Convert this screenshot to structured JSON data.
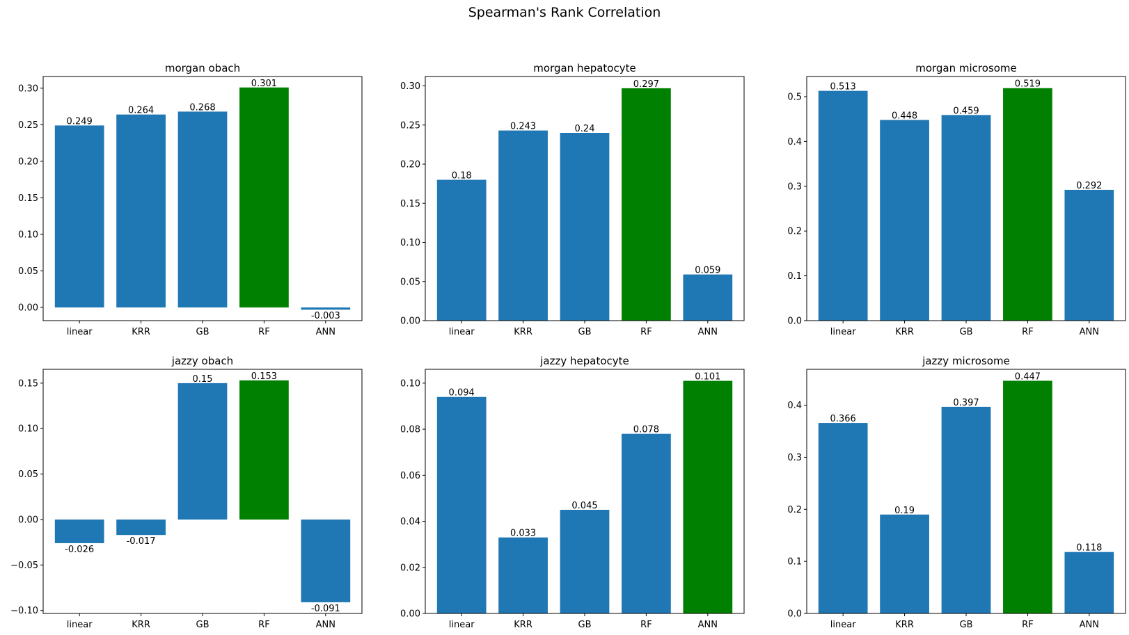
{
  "title": "Spearman's Rank Correlation",
  "colors": {
    "default": "#1f77b4",
    "best": "#008000"
  },
  "chart_data": [
    {
      "type": "bar",
      "title": "morgan obach",
      "categories": [
        "linear",
        "KRR",
        "GB",
        "RF",
        "ANN"
      ],
      "values": [
        0.249,
        0.264,
        0.268,
        0.301,
        -0.003
      ],
      "value_labels": [
        "0.249",
        "0.264",
        "0.268",
        "0.301",
        "-0.003"
      ],
      "ylim": [
        -0.018,
        0.316
      ],
      "yticks": [
        0.0,
        0.05,
        0.1,
        0.15,
        0.2,
        0.25,
        0.3
      ],
      "ytick_labels": [
        "0.00",
        "0.05",
        "0.10",
        "0.15",
        "0.20",
        "0.25",
        "0.30"
      ],
      "highlight_index": 3
    },
    {
      "type": "bar",
      "title": "morgan hepatocyte",
      "categories": [
        "linear",
        "KRR",
        "GB",
        "RF",
        "ANN"
      ],
      "values": [
        0.18,
        0.243,
        0.24,
        0.297,
        0.059
      ],
      "value_labels": [
        "0.18",
        "0.243",
        "0.24",
        "0.297",
        "0.059"
      ],
      "ylim": [
        0,
        0.312
      ],
      "yticks": [
        0.0,
        0.05,
        0.1,
        0.15,
        0.2,
        0.25,
        0.3
      ],
      "ytick_labels": [
        "0.00",
        "0.05",
        "0.10",
        "0.15",
        "0.20",
        "0.25",
        "0.30"
      ],
      "highlight_index": 3
    },
    {
      "type": "bar",
      "title": "morgan microsome",
      "categories": [
        "linear",
        "KRR",
        "GB",
        "RF",
        "ANN"
      ],
      "values": [
        0.513,
        0.448,
        0.459,
        0.519,
        0.292
      ],
      "value_labels": [
        "0.513",
        "0.448",
        "0.459",
        "0.519",
        "0.292"
      ],
      "ylim": [
        0,
        0.545
      ],
      "yticks": [
        0.0,
        0.1,
        0.2,
        0.3,
        0.4,
        0.5
      ],
      "ytick_labels": [
        "0.0",
        "0.1",
        "0.2",
        "0.3",
        "0.4",
        "0.5"
      ],
      "highlight_index": 3
    },
    {
      "type": "bar",
      "title": "jazzy obach",
      "categories": [
        "linear",
        "KRR",
        "GB",
        "RF",
        "ANN"
      ],
      "values": [
        -0.026,
        -0.017,
        0.15,
        0.153,
        -0.091
      ],
      "value_labels": [
        "-0.026",
        "-0.017",
        "0.15",
        "0.153",
        "-0.091"
      ],
      "ylim": [
        -0.1033,
        0.1652
      ],
      "yticks": [
        -0.1,
        -0.05,
        0.0,
        0.05,
        0.1,
        0.15
      ],
      "ytick_labels": [
        "−0.10",
        "−0.05",
        "0.00",
        "0.05",
        "0.10",
        "0.15"
      ],
      "highlight_index": 3
    },
    {
      "type": "bar",
      "title": "jazzy hepatocyte",
      "categories": [
        "linear",
        "KRR",
        "GB",
        "RF",
        "ANN"
      ],
      "values": [
        0.094,
        0.033,
        0.045,
        0.078,
        0.101
      ],
      "value_labels": [
        "0.094",
        "0.033",
        "0.045",
        "0.078",
        "0.101"
      ],
      "ylim": [
        0,
        0.106
      ],
      "yticks": [
        0.0,
        0.02,
        0.04,
        0.06,
        0.08,
        0.1
      ],
      "ytick_labels": [
        "0.00",
        "0.02",
        "0.04",
        "0.06",
        "0.08",
        "0.10"
      ],
      "highlight_index": 4
    },
    {
      "type": "bar",
      "title": "jazzy microsome",
      "categories": [
        "linear",
        "KRR",
        "GB",
        "RF",
        "ANN"
      ],
      "values": [
        0.366,
        0.19,
        0.397,
        0.447,
        0.118
      ],
      "value_labels": [
        "0.366",
        "0.19",
        "0.397",
        "0.447",
        "0.118"
      ],
      "ylim": [
        0,
        0.469
      ],
      "yticks": [
        0.0,
        0.1,
        0.2,
        0.3,
        0.4
      ],
      "ytick_labels": [
        "0.0",
        "0.1",
        "0.2",
        "0.3",
        "0.4"
      ],
      "highlight_index": 3
    }
  ]
}
